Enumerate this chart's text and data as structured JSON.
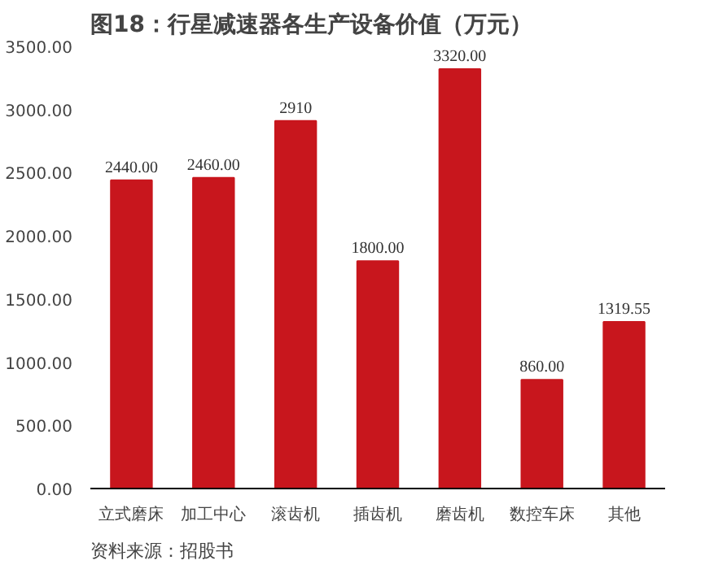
{
  "chart_data": {
    "type": "bar",
    "title": "图18：行星减速器各生产设备价值（万元）",
    "categories": [
      "立式磨床",
      "加工中心",
      "滚齿机",
      "插齿机",
      "磨齿机",
      "数控车床",
      "其他"
    ],
    "values": [
      2440,
      2460,
      2910,
      1800,
      3320,
      860,
      1319.55
    ],
    "value_labels": [
      "2440.00",
      "2460.00",
      "2910",
      "1800.00",
      "3320.00",
      "860.00",
      "1319.55"
    ],
    "color": "#c8161d",
    "ylim": [
      0,
      3500
    ],
    "yticks": [
      {
        "value": 0,
        "label": "0.00"
      },
      {
        "value": 500,
        "label": "500.00"
      },
      {
        "value": 1000,
        "label": "1000.00"
      },
      {
        "value": 1500,
        "label": "1500.00"
      },
      {
        "value": 2000,
        "label": "2000.00"
      },
      {
        "value": 2500,
        "label": "2500.00"
      },
      {
        "value": 3000,
        "label": "3000.00"
      },
      {
        "value": 3500,
        "label": "3500.00"
      }
    ],
    "grid": false,
    "annotations": [
      "资料来源：招股书"
    ]
  }
}
